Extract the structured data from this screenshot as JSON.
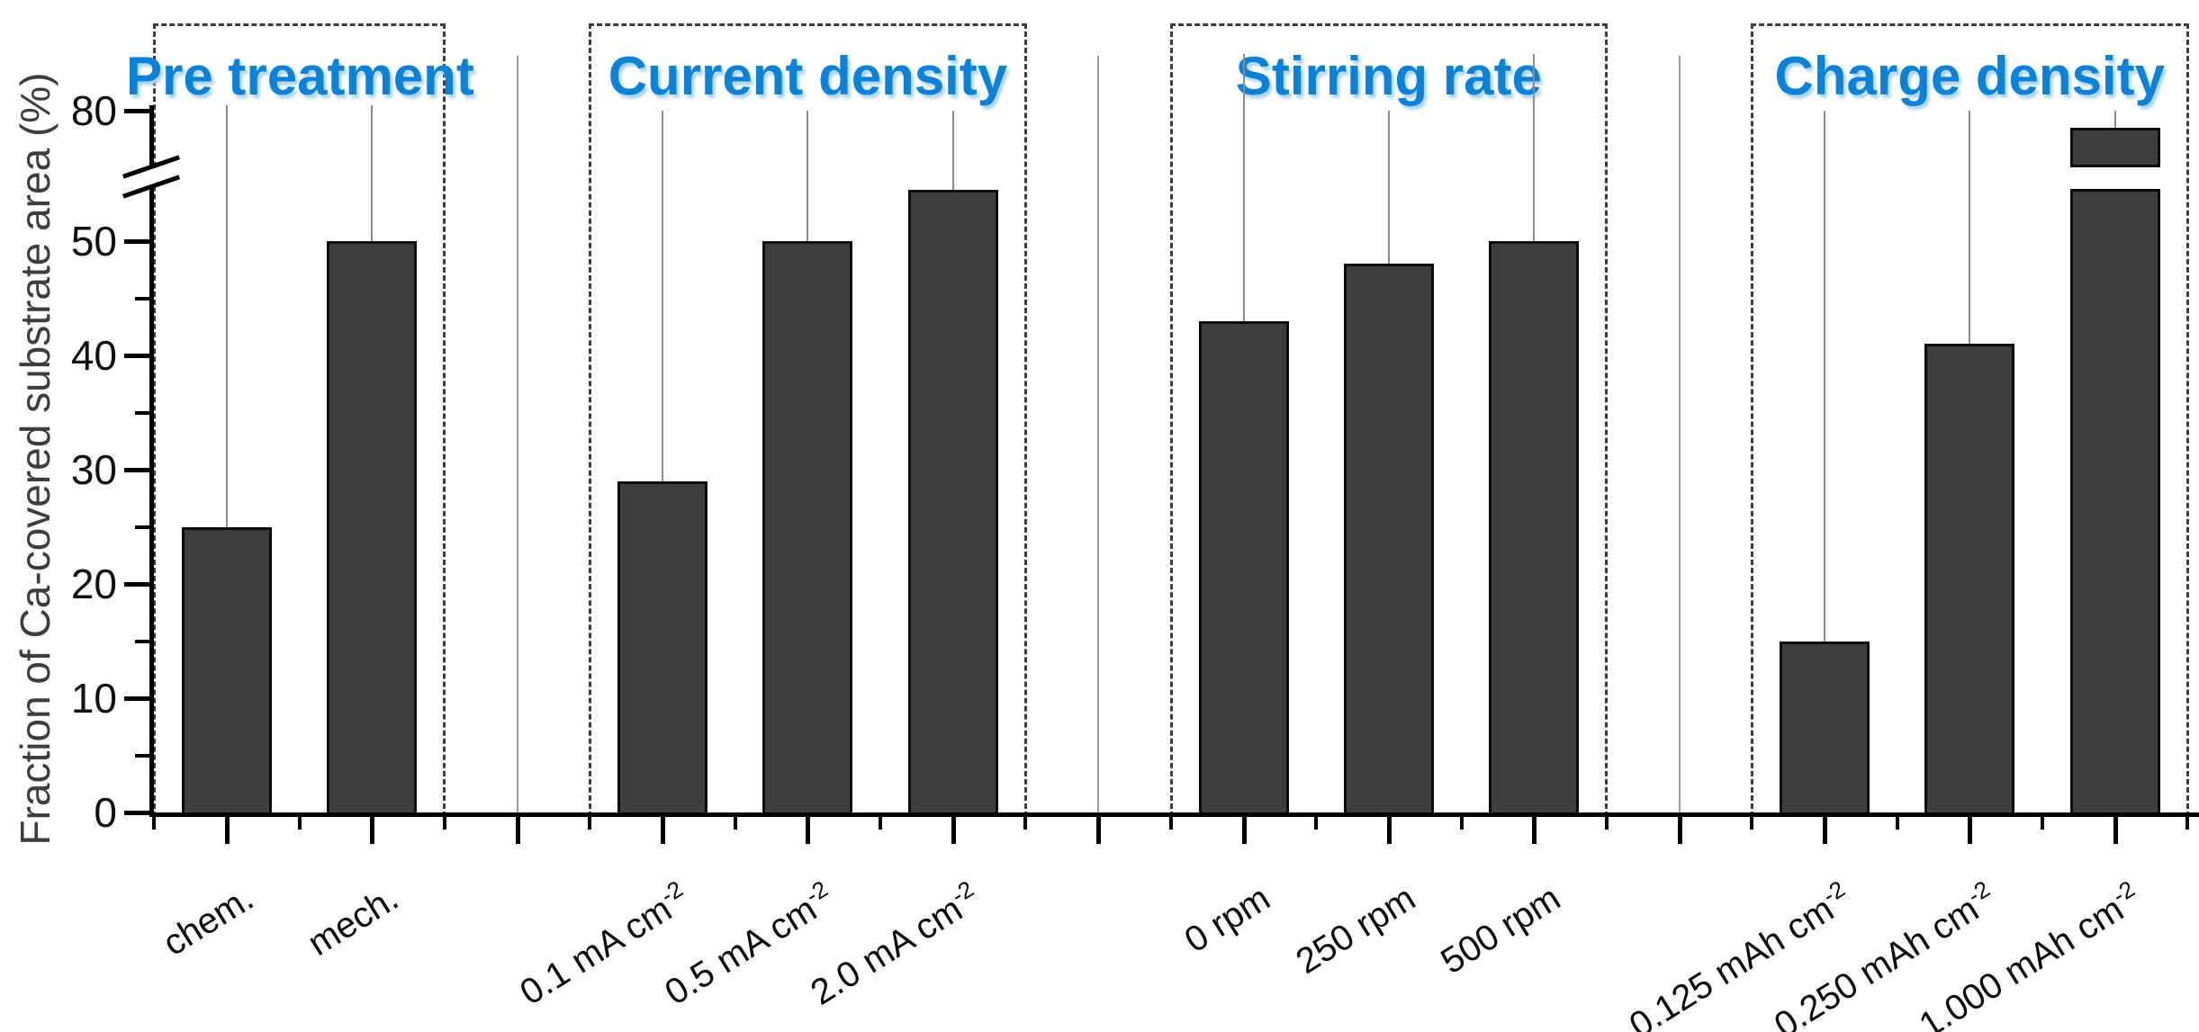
{
  "colors": {
    "background": "#ffffff",
    "bar_fill": "#3e3e3e",
    "bar_border": "#0b0b0b",
    "axis": "#000000",
    "tick_label": "#111111",
    "group_title_blue": "#0b82d8",
    "group_title_shadow": "#a9d4f2",
    "group_box_dash": "#3c3c3c",
    "whisker_gray": "#8c8c8c",
    "separator_gray": "#9b9b9b",
    "y_axis_title": "#3d3d3d"
  },
  "chart_data": {
    "type": "bar",
    "title": "",
    "xlabel": "",
    "ylabel": "Fraction of Ca-covered substrate area (%)",
    "legend": "none",
    "grid": false,
    "y_axis": {
      "ylim": [
        0,
        86
      ],
      "major_ticks": [
        0,
        10,
        20,
        30,
        40,
        50,
        80
      ],
      "minor_ticks": [
        5,
        15,
        25,
        35,
        45
      ],
      "axis_break": {
        "hidden_range": [
          55,
          75
        ]
      }
    },
    "bar_style": {
      "description": "single dark-gray series, black outline, thin gray upper error whisker lines without caps; dashed box with blue bold title around each parameter group; thin gray vertical separator line between groups"
    },
    "groups": [
      {
        "title": "Pre treatment",
        "bars": [
          {
            "label": "chem.",
            "sup": "",
            "value": 25,
            "whisker_top": 80.5
          },
          {
            "label": "mech.",
            "sup": "",
            "value": 50,
            "whisker_top": 80.5
          }
        ]
      },
      {
        "title": "Current density",
        "bars": [
          {
            "label": "0.1 mA cm",
            "sup": "-2",
            "value": 29,
            "whisker_top": 80
          },
          {
            "label": "0.5 mA cm",
            "sup": "-2",
            "value": 50,
            "whisker_top": 80
          },
          {
            "label": "2.0 mA cm",
            "sup": "-2",
            "value": 54.5,
            "whisker_top": 80
          }
        ]
      },
      {
        "title": "Stirring rate",
        "bars": [
          {
            "label": "0 rpm",
            "sup": "",
            "value": 43,
            "whisker_top": 85
          },
          {
            "label": "250 rpm",
            "sup": "",
            "value": 48,
            "whisker_top": 80
          },
          {
            "label": "500 rpm",
            "sup": "",
            "value": 50,
            "whisker_top": 85
          }
        ]
      },
      {
        "title": "Charge density",
        "bars": [
          {
            "label": "0.125 mAh cm",
            "sup": "-2",
            "value": 15,
            "whisker_top": 80
          },
          {
            "label": "0.250 mAh cm",
            "sup": "-2",
            "value": 41,
            "whisker_top": 80
          },
          {
            "label": "1.000 mAh cm",
            "sup": "-2",
            "value": 78.5,
            "whisker_top": 80
          }
        ]
      }
    ]
  }
}
